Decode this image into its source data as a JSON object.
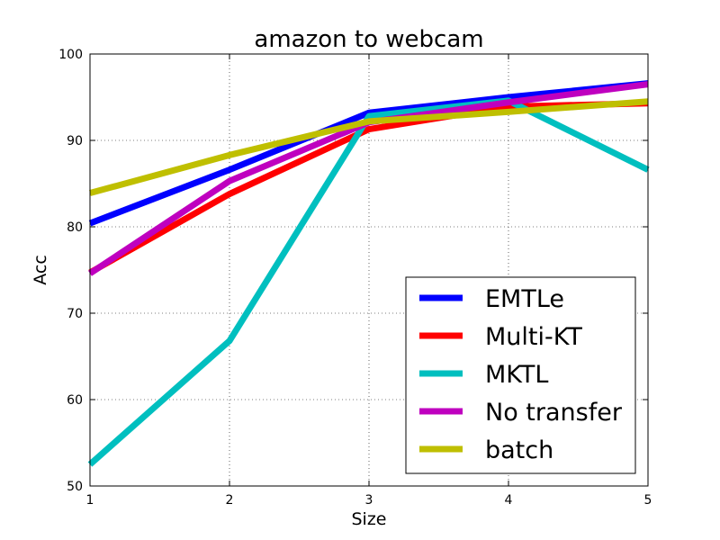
{
  "chart_data": {
    "type": "line",
    "title": "amazon to webcam",
    "xlabel": "Size",
    "ylabel": "Acc",
    "x": [
      1,
      2,
      3,
      4,
      5
    ],
    "xlim": [
      1,
      5
    ],
    "ylim": [
      50,
      100
    ],
    "xticks": [
      "1",
      "2",
      "3",
      "4",
      "5"
    ],
    "yticks": [
      "50",
      "60",
      "70",
      "80",
      "90",
      "100"
    ],
    "grid": true,
    "legend_position": "lower-right",
    "series": [
      {
        "name": "EMTLe",
        "color": "#0000ff",
        "values": [
          80.4,
          86.6,
          93.2,
          95.0,
          96.6
        ]
      },
      {
        "name": "Multi-KT",
        "color": "#ff0000",
        "values": [
          74.7,
          83.8,
          91.3,
          93.9,
          94.3
        ]
      },
      {
        "name": "MKTL",
        "color": "#00bfbf",
        "values": [
          52.5,
          66.8,
          92.8,
          94.6,
          86.6
        ]
      },
      {
        "name": "No transfer",
        "color": "#bf00bf",
        "values": [
          74.6,
          85.3,
          92.1,
          94.4,
          96.5
        ]
      },
      {
        "name": "batch",
        "color": "#bfbf00",
        "values": [
          83.9,
          88.3,
          92.2,
          93.3,
          94.5
        ]
      }
    ]
  }
}
